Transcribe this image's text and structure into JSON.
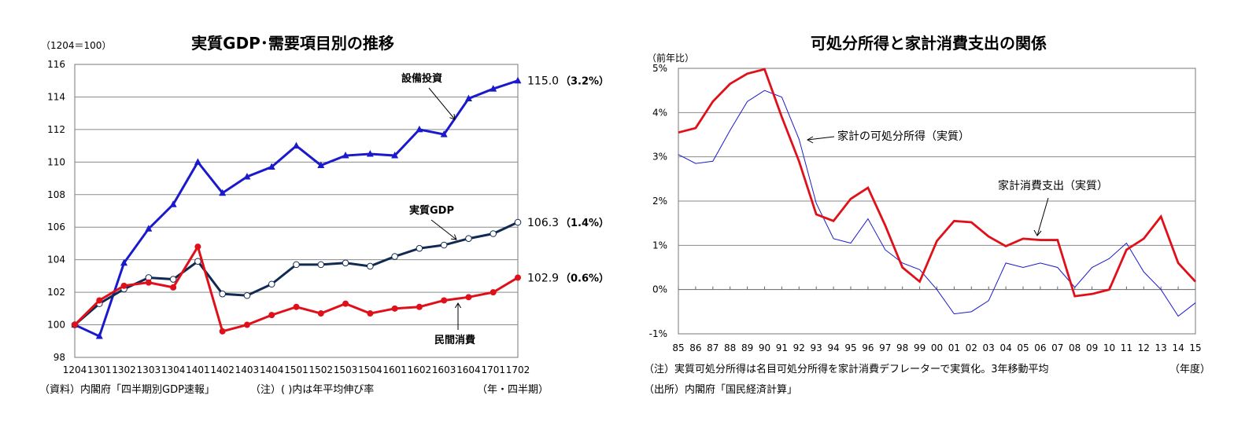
{
  "chart_data": [
    {
      "type": "line",
      "title": "実質GDP･需要項目別の推移",
      "unit_label": "（1204＝100）",
      "x_axis_label": "（年・四半期）",
      "source": "（資料）内閣府「四半期別GDP速報」",
      "note": "（注）(  )内は年平均伸び率",
      "categories": [
        "1204",
        "1301",
        "1302",
        "1303",
        "1304",
        "1401",
        "1402",
        "1403",
        "1404",
        "1501",
        "1502",
        "1503",
        "1504",
        "1601",
        "1602",
        "1603",
        "1604",
        "1701",
        "1702"
      ],
      "ylim": [
        98,
        116
      ],
      "yticks": [
        "98",
        "100",
        "102",
        "104",
        "106",
        "108",
        "110",
        "112",
        "114",
        "116"
      ],
      "grid": true,
      "series": [
        {
          "name": "設備投資",
          "color": "#1a1acc",
          "marker": "triangle",
          "values": [
            100.0,
            99.3,
            103.8,
            105.9,
            107.4,
            110.0,
            108.1,
            109.1,
            109.7,
            111.0,
            109.8,
            110.4,
            110.5,
            110.4,
            112.0,
            111.7,
            113.9,
            114.5,
            115.0
          ],
          "end_value": "115.0",
          "end_rate": "（3.2%）"
        },
        {
          "name": "実質GDP",
          "color": "#102a52",
          "marker": "circle-open",
          "values": [
            100.0,
            101.3,
            102.2,
            102.9,
            102.8,
            103.9,
            101.9,
            101.8,
            102.5,
            103.7,
            103.7,
            103.8,
            103.6,
            104.2,
            104.7,
            104.9,
            105.3,
            105.6,
            106.3
          ],
          "end_value": "106.3",
          "end_rate": "（1.4%）"
        },
        {
          "name": "民間消費",
          "color": "#e0101a",
          "marker": "circle",
          "values": [
            100.0,
            101.5,
            102.4,
            102.6,
            102.3,
            104.8,
            99.6,
            100.0,
            100.6,
            101.1,
            100.7,
            101.3,
            100.7,
            101.0,
            101.1,
            101.5,
            101.7,
            102.0,
            102.9
          ],
          "end_value": "102.9",
          "end_rate": "（0.6%）"
        }
      ]
    },
    {
      "type": "line",
      "title": "可処分所得と家計消費支出の関係",
      "unit_label": "（前年比）",
      "x_axis_label": "（年度）",
      "note": "（注）実質可処分所得は名目可処分所得を家計消費デフレーターで実質化。3年移動平均",
      "source": "（出所）内閣府「国民経済計算」",
      "categories": [
        "85",
        "86",
        "87",
        "88",
        "89",
        "90",
        "91",
        "92",
        "93",
        "94",
        "95",
        "96",
        "97",
        "98",
        "99",
        "00",
        "01",
        "02",
        "03",
        "04",
        "05",
        "06",
        "07",
        "08",
        "09",
        "10",
        "11",
        "12",
        "13",
        "14",
        "15"
      ],
      "ylim": [
        -1,
        5
      ],
      "yticks": [
        "-1%",
        "0%",
        "1%",
        "2%",
        "3%",
        "4%",
        "5%"
      ],
      "grid": true,
      "series": [
        {
          "name": "家計の可処分所得（実質）",
          "color": "#1a1acc",
          "values": [
            3.05,
            2.85,
            2.9,
            3.6,
            4.25,
            4.5,
            4.35,
            3.4,
            1.95,
            1.15,
            1.05,
            1.6,
            0.9,
            0.6,
            0.45,
            0.0,
            -0.55,
            -0.5,
            -0.25,
            0.6,
            0.5,
            0.6,
            0.5,
            0.05,
            0.5,
            0.7,
            1.05,
            0.4,
            0.0,
            -0.6,
            -0.3
          ]
        },
        {
          "name": "家計消費支出（実質）",
          "color": "#e0101a",
          "values": [
            3.55,
            3.65,
            4.25,
            4.65,
            4.88,
            4.98,
            3.9,
            2.9,
            1.7,
            1.55,
            2.05,
            2.3,
            1.45,
            0.5,
            0.18,
            1.1,
            1.55,
            1.52,
            1.2,
            0.98,
            1.15,
            1.12,
            1.12,
            -0.15,
            -0.1,
            0.0,
            0.9,
            1.15,
            1.65,
            0.6,
            0.18
          ]
        }
      ]
    }
  ]
}
